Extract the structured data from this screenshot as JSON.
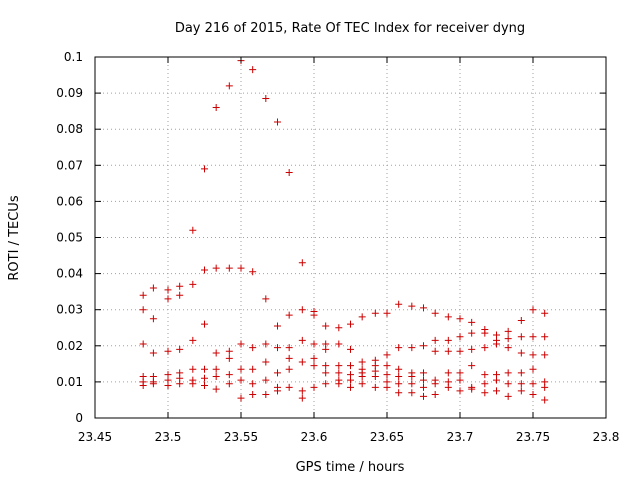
{
  "chart_data": {
    "type": "scatter",
    "title": "Day 216 of 2015, Rate Of TEC Index for receiver dyng",
    "xlabel": "GPS time / hours",
    "ylabel": "ROTI / TECUs",
    "xlim": [
      23.45,
      23.8
    ],
    "ylim": [
      0,
      0.1
    ],
    "xticks": [
      23.45,
      23.5,
      23.55,
      23.6,
      23.65,
      23.7,
      23.75,
      23.8
    ],
    "xtick_labels": [
      "23.45",
      "23.5",
      "23.55",
      "23.6",
      "23.65",
      "23.7",
      "23.75",
      "23.8"
    ],
    "yticks": [
      0,
      0.01,
      0.02,
      0.03,
      0.04,
      0.05,
      0.06,
      0.07,
      0.08,
      0.09,
      0.1
    ],
    "ytick_labels": [
      "0",
      "0.01",
      "0.02",
      "0.03",
      "0.04",
      "0.05",
      "0.06",
      "0.07",
      "0.08",
      "0.09",
      "0.1"
    ],
    "grid": true,
    "marker": "plus",
    "color": "#cc0000",
    "points": [
      [
        23.483,
        0.034
      ],
      [
        23.483,
        0.03
      ],
      [
        23.483,
        0.0205
      ],
      [
        23.483,
        0.0115
      ],
      [
        23.483,
        0.01
      ],
      [
        23.483,
        0.009
      ],
      [
        23.49,
        0.036
      ],
      [
        23.49,
        0.0275
      ],
      [
        23.49,
        0.018
      ],
      [
        23.49,
        0.0115
      ],
      [
        23.49,
        0.01
      ],
      [
        23.49,
        0.0095
      ],
      [
        23.5,
        0.0355
      ],
      [
        23.5,
        0.033
      ],
      [
        23.5,
        0.0185
      ],
      [
        23.5,
        0.012
      ],
      [
        23.5,
        0.0105
      ],
      [
        23.5,
        0.009
      ],
      [
        23.508,
        0.0365
      ],
      [
        23.508,
        0.034
      ],
      [
        23.508,
        0.019
      ],
      [
        23.508,
        0.0125
      ],
      [
        23.508,
        0.011
      ],
      [
        23.508,
        0.0095
      ],
      [
        23.517,
        0.052
      ],
      [
        23.517,
        0.037
      ],
      [
        23.517,
        0.0215
      ],
      [
        23.517,
        0.0135
      ],
      [
        23.517,
        0.0105
      ],
      [
        23.517,
        0.0095
      ],
      [
        23.525,
        0.069
      ],
      [
        23.525,
        0.041
      ],
      [
        23.525,
        0.026
      ],
      [
        23.525,
        0.0135
      ],
      [
        23.525,
        0.011
      ],
      [
        23.525,
        0.009
      ],
      [
        23.533,
        0.086
      ],
      [
        23.533,
        0.0415
      ],
      [
        23.533,
        0.018
      ],
      [
        23.533,
        0.0135
      ],
      [
        23.533,
        0.0115
      ],
      [
        23.533,
        0.008
      ],
      [
        23.542,
        0.092
      ],
      [
        23.542,
        0.0415
      ],
      [
        23.542,
        0.0185
      ],
      [
        23.542,
        0.0165
      ],
      [
        23.542,
        0.012
      ],
      [
        23.542,
        0.0095
      ],
      [
        23.55,
        0.099
      ],
      [
        23.55,
        0.0415
      ],
      [
        23.55,
        0.0205
      ],
      [
        23.55,
        0.0135
      ],
      [
        23.55,
        0.0105
      ],
      [
        23.55,
        0.0055
      ],
      [
        23.558,
        0.0965
      ],
      [
        23.558,
        0.0405
      ],
      [
        23.558,
        0.0195
      ],
      [
        23.558,
        0.0135
      ],
      [
        23.558,
        0.0095
      ],
      [
        23.558,
        0.0065
      ],
      [
        23.567,
        0.0885
      ],
      [
        23.567,
        0.033
      ],
      [
        23.567,
        0.0205
      ],
      [
        23.567,
        0.0155
      ],
      [
        23.567,
        0.0105
      ],
      [
        23.567,
        0.0065
      ],
      [
        23.575,
        0.082
      ],
      [
        23.575,
        0.0255
      ],
      [
        23.575,
        0.0195
      ],
      [
        23.575,
        0.0125
      ],
      [
        23.575,
        0.0085
      ],
      [
        23.575,
        0.0075
      ],
      [
        23.583,
        0.068
      ],
      [
        23.583,
        0.0285
      ],
      [
        23.583,
        0.0195
      ],
      [
        23.583,
        0.0165
      ],
      [
        23.583,
        0.0135
      ],
      [
        23.583,
        0.0085
      ],
      [
        23.592,
        0.043
      ],
      [
        23.592,
        0.03
      ],
      [
        23.592,
        0.0215
      ],
      [
        23.592,
        0.0155
      ],
      [
        23.592,
        0.0075
      ],
      [
        23.592,
        0.0055
      ],
      [
        23.6,
        0.0295
      ],
      [
        23.6,
        0.0285
      ],
      [
        23.6,
        0.0205
      ],
      [
        23.6,
        0.0165
      ],
      [
        23.6,
        0.0145
      ],
      [
        23.6,
        0.0085
      ],
      [
        23.608,
        0.0255
      ],
      [
        23.608,
        0.0205
      ],
      [
        23.608,
        0.019
      ],
      [
        23.608,
        0.0145
      ],
      [
        23.608,
        0.0125
      ],
      [
        23.608,
        0.0095
      ],
      [
        23.617,
        0.025
      ],
      [
        23.617,
        0.0205
      ],
      [
        23.617,
        0.0145
      ],
      [
        23.617,
        0.0125
      ],
      [
        23.617,
        0.0105
      ],
      [
        23.617,
        0.0095
      ],
      [
        23.625,
        0.026
      ],
      [
        23.625,
        0.019
      ],
      [
        23.625,
        0.0145
      ],
      [
        23.625,
        0.012
      ],
      [
        23.625,
        0.0105
      ],
      [
        23.625,
        0.0085
      ],
      [
        23.633,
        0.028
      ],
      [
        23.633,
        0.0155
      ],
      [
        23.633,
        0.0135
      ],
      [
        23.633,
        0.0125
      ],
      [
        23.633,
        0.0115
      ],
      [
        23.633,
        0.0095
      ],
      [
        23.642,
        0.029
      ],
      [
        23.642,
        0.016
      ],
      [
        23.642,
        0.0145
      ],
      [
        23.642,
        0.013
      ],
      [
        23.642,
        0.0115
      ],
      [
        23.642,
        0.0085
      ],
      [
        23.65,
        0.029
      ],
      [
        23.65,
        0.0175
      ],
      [
        23.65,
        0.0145
      ],
      [
        23.65,
        0.012
      ],
      [
        23.65,
        0.01
      ],
      [
        23.65,
        0.0085
      ],
      [
        23.658,
        0.0315
      ],
      [
        23.658,
        0.0195
      ],
      [
        23.658,
        0.0135
      ],
      [
        23.658,
        0.0115
      ],
      [
        23.658,
        0.0095
      ],
      [
        23.658,
        0.007
      ],
      [
        23.667,
        0.031
      ],
      [
        23.667,
        0.0195
      ],
      [
        23.667,
        0.0125
      ],
      [
        23.667,
        0.0115
      ],
      [
        23.667,
        0.0095
      ],
      [
        23.667,
        0.007
      ],
      [
        23.675,
        0.0305
      ],
      [
        23.675,
        0.02
      ],
      [
        23.675,
        0.0125
      ],
      [
        23.675,
        0.0105
      ],
      [
        23.675,
        0.0085
      ],
      [
        23.675,
        0.006
      ],
      [
        23.683,
        0.029
      ],
      [
        23.683,
        0.0215
      ],
      [
        23.683,
        0.0185
      ],
      [
        23.683,
        0.0105
      ],
      [
        23.683,
        0.0095
      ],
      [
        23.683,
        0.0065
      ],
      [
        23.692,
        0.028
      ],
      [
        23.692,
        0.0215
      ],
      [
        23.692,
        0.0185
      ],
      [
        23.692,
        0.0125
      ],
      [
        23.692,
        0.01
      ],
      [
        23.692,
        0.0085
      ],
      [
        23.7,
        0.0275
      ],
      [
        23.7,
        0.0225
      ],
      [
        23.7,
        0.0185
      ],
      [
        23.7,
        0.0125
      ],
      [
        23.7,
        0.0105
      ],
      [
        23.7,
        0.0075
      ],
      [
        23.708,
        0.0265
      ],
      [
        23.708,
        0.0235
      ],
      [
        23.708,
        0.019
      ],
      [
        23.708,
        0.0145
      ],
      [
        23.708,
        0.0085
      ],
      [
        23.708,
        0.008
      ],
      [
        23.717,
        0.0245
      ],
      [
        23.717,
        0.0235
      ],
      [
        23.717,
        0.0195
      ],
      [
        23.717,
        0.012
      ],
      [
        23.717,
        0.0095
      ],
      [
        23.717,
        0.007
      ],
      [
        23.725,
        0.023
      ],
      [
        23.725,
        0.0215
      ],
      [
        23.725,
        0.0205
      ],
      [
        23.725,
        0.012
      ],
      [
        23.725,
        0.0105
      ],
      [
        23.725,
        0.0075
      ],
      [
        23.733,
        0.024
      ],
      [
        23.733,
        0.022
      ],
      [
        23.733,
        0.0195
      ],
      [
        23.733,
        0.0125
      ],
      [
        23.733,
        0.0095
      ],
      [
        23.733,
        0.006
      ],
      [
        23.742,
        0.027
      ],
      [
        23.742,
        0.0225
      ],
      [
        23.742,
        0.018
      ],
      [
        23.742,
        0.0125
      ],
      [
        23.742,
        0.0095
      ],
      [
        23.742,
        0.0075
      ],
      [
        23.75,
        0.03
      ],
      [
        23.75,
        0.0225
      ],
      [
        23.75,
        0.0175
      ],
      [
        23.75,
        0.0135
      ],
      [
        23.75,
        0.0095
      ],
      [
        23.75,
        0.0065
      ],
      [
        23.758,
        0.029
      ],
      [
        23.758,
        0.0225
      ],
      [
        23.758,
        0.0175
      ],
      [
        23.758,
        0.01
      ],
      [
        23.758,
        0.0085
      ],
      [
        23.758,
        0.005
      ]
    ]
  }
}
